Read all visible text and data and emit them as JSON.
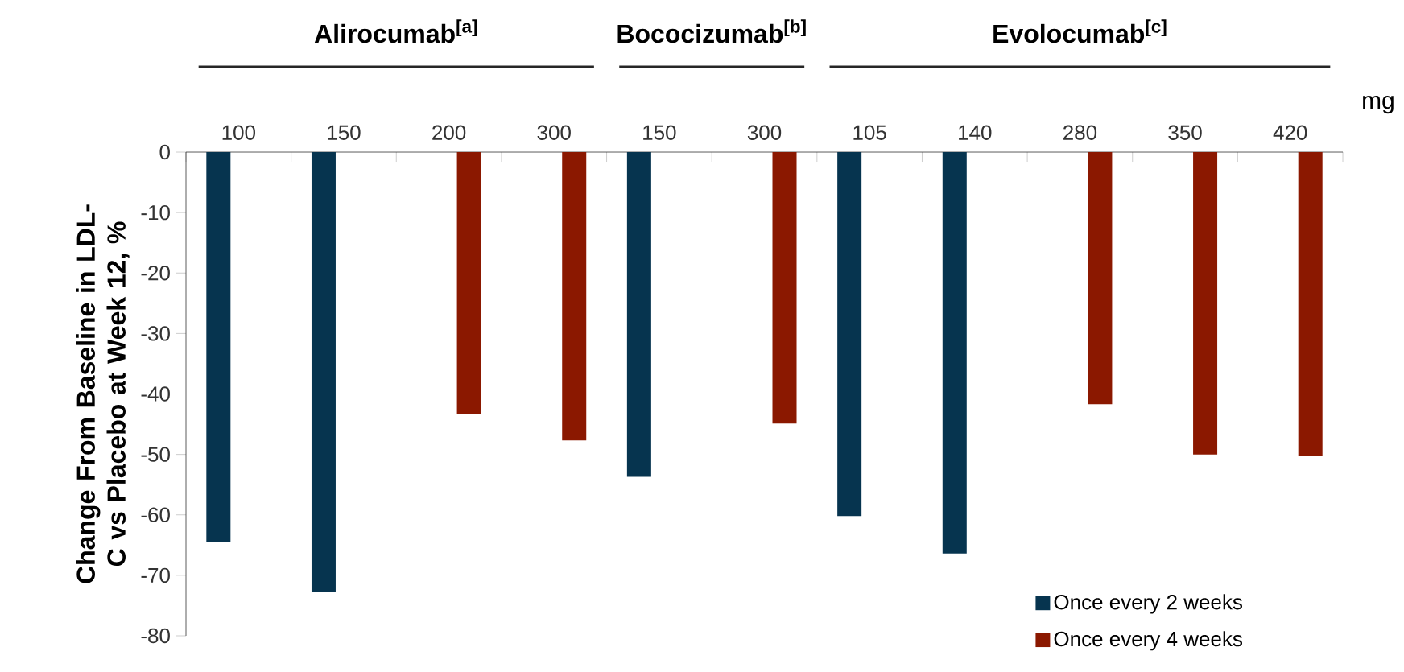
{
  "chart_data": {
    "type": "bar",
    "categories": [
      "100",
      "150",
      "200",
      "300",
      "150",
      "300",
      "105",
      "140",
      "280",
      "350",
      "420"
    ],
    "ylabel": "Change From Baseline in LDL-C vs Placebo at Week 12, %",
    "ylim": [
      -80,
      0
    ],
    "yticks": [
      -80,
      -70,
      -60,
      -50,
      -40,
      -30,
      -20,
      -10,
      0
    ],
    "legend": "bottom right",
    "series": [
      {
        "name": "Once every 2 weeks",
        "color": "#06344f",
        "values": [
          -64.5,
          -72.7,
          null,
          null,
          -53.7,
          null,
          -60.2,
          -66.4,
          null,
          null,
          null
        ]
      },
      {
        "name": "Once every 4 weeks",
        "color": "#8b1800",
        "values": [
          null,
          null,
          -43.4,
          -47.7,
          null,
          -44.9,
          null,
          null,
          -41.7,
          -50.0,
          -50.3
        ]
      }
    ],
    "annotations": [
      "Alirocumab$^{[a]}$",
      "Bococizumab$^{[b]}$",
      "Evolocumab$^{[c]}$",
      "mg"
    ]
  }
}
